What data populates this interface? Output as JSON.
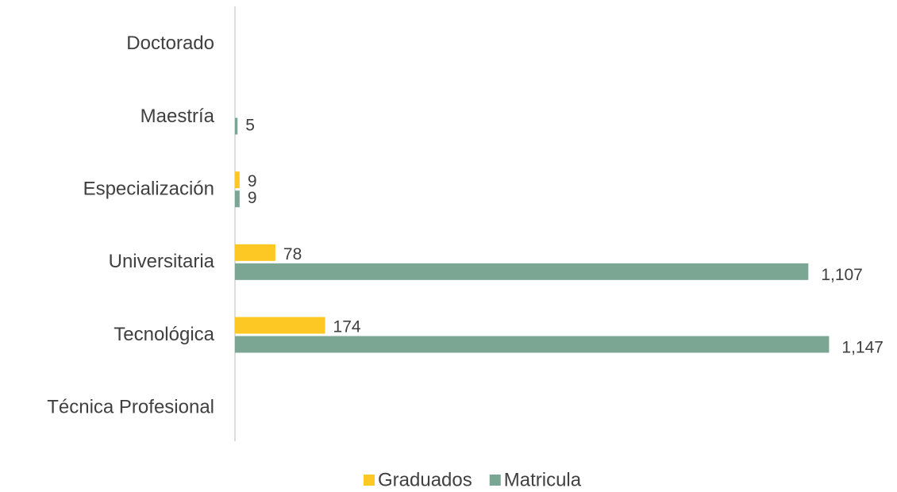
{
  "chart_data": {
    "type": "hbar",
    "categories": [
      "Doctorado",
      "Maestría",
      "Especialización",
      "Universitaria",
      "Tecnológica",
      "Técnica Profesional"
    ],
    "series": [
      {
        "name": "Graduados",
        "color": "#fdc823",
        "values": [
          null,
          null,
          9,
          78,
          174,
          null
        ]
      },
      {
        "name": "Matricula",
        "color": "#7ba694",
        "values": [
          null,
          5,
          9,
          1107,
          1147,
          null
        ],
        "value_labels": [
          null,
          "5",
          "9",
          "1,107",
          "1,147",
          null
        ]
      }
    ],
    "xlim": [
      0,
      1200
    ],
    "legend": "bottom"
  }
}
